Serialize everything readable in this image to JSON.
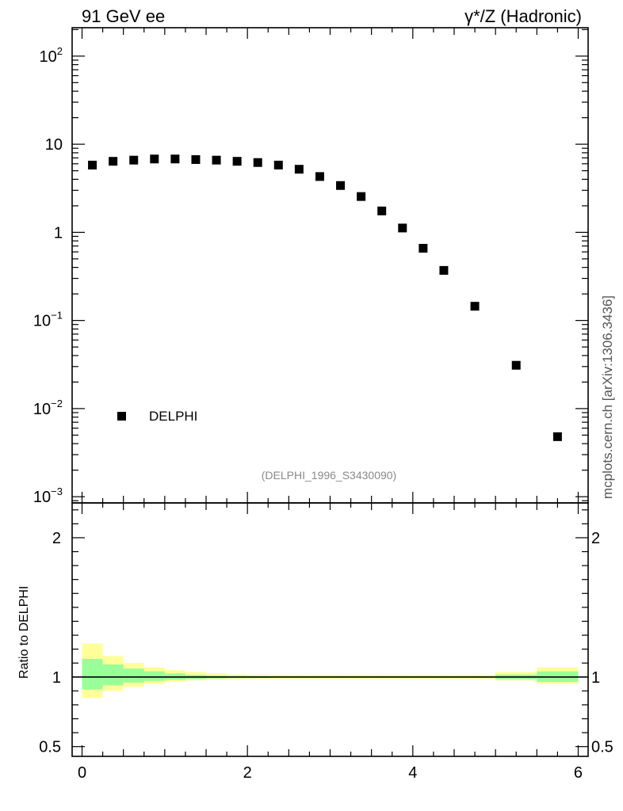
{
  "header": {
    "left": "91 GeV ee",
    "right": "γ*/Z (Hadronic)"
  },
  "side_label": "mcplots.cern.ch [arXiv:1306.3436]",
  "reference_label": "(DELPHI_1996_S3430090)",
  "chart_data": [
    {
      "type": "scatter",
      "yscale": "log",
      "xlim": [
        -0.12,
        6.12
      ],
      "ylim": [
        0.00085,
        210
      ],
      "y_ticks": [
        {
          "value": 100,
          "label": "10^2"
        },
        {
          "value": 10,
          "label": "10"
        },
        {
          "value": 1,
          "label": "1"
        },
        {
          "value": 0.1,
          "label": "10^-1"
        },
        {
          "value": 0.01,
          "label": "10^-2"
        },
        {
          "value": 0.001,
          "label": "10^-3"
        }
      ],
      "legend": {
        "position": "bottom-left",
        "entries": [
          "DELPHI"
        ]
      },
      "series": [
        {
          "name": "DELPHI",
          "color": "#000000",
          "marker": "square",
          "x": [
            0.125,
            0.375,
            0.625,
            0.875,
            1.125,
            1.375,
            1.625,
            1.875,
            2.125,
            2.375,
            2.625,
            2.875,
            3.125,
            3.375,
            3.625,
            3.875,
            4.125,
            4.375,
            4.75,
            5.25,
            5.75
          ],
          "y": [
            5.8,
            6.4,
            6.6,
            6.8,
            6.8,
            6.7,
            6.6,
            6.4,
            6.2,
            5.8,
            5.2,
            4.3,
            3.4,
            2.55,
            1.75,
            1.12,
            0.66,
            0.37,
            0.145,
            0.031,
            0.0048
          ]
        }
      ]
    },
    {
      "type": "area",
      "ylabel": "Ratio to DELPHI",
      "xlim": [
        -0.12,
        6.12
      ],
      "ylim": [
        0.43,
        2.25
      ],
      "x_ticks": [
        "0",
        "2",
        "4",
        "6"
      ],
      "y_ticks": [
        {
          "value": 2,
          "label": "2"
        },
        {
          "value": 1,
          "label": "1"
        },
        {
          "value": 0.5,
          "label": "0.5"
        }
      ],
      "bin_edges": [
        0,
        0.25,
        0.5,
        0.75,
        1.0,
        1.25,
        1.5,
        1.75,
        2.0,
        2.25,
        2.5,
        2.75,
        3.0,
        3.25,
        3.5,
        3.75,
        4.0,
        4.25,
        4.5,
        5.0,
        5.5,
        6.0
      ],
      "bands": [
        {
          "name": "total",
          "color": "#ffff99",
          "lower": [
            0.85,
            0.9,
            0.93,
            0.95,
            0.965,
            0.975,
            0.982,
            0.985,
            0.987,
            0.987,
            0.987,
            0.987,
            0.987,
            0.987,
            0.987,
            0.987,
            0.987,
            0.987,
            0.987,
            0.975,
            0.95
          ],
          "upper": [
            1.24,
            1.15,
            1.1,
            1.07,
            1.05,
            1.035,
            1.025,
            1.018,
            1.015,
            1.015,
            1.015,
            1.015,
            1.015,
            1.015,
            1.015,
            1.015,
            1.015,
            1.015,
            1.015,
            1.035,
            1.07
          ]
        },
        {
          "name": "statistical",
          "color": "#99ff99",
          "lower": [
            0.91,
            0.94,
            0.96,
            0.972,
            0.98,
            0.986,
            0.99,
            0.992,
            0.993,
            0.994,
            0.994,
            0.994,
            0.994,
            0.994,
            0.994,
            0.994,
            0.994,
            0.994,
            0.994,
            0.985,
            0.965
          ],
          "upper": [
            1.13,
            1.09,
            1.06,
            1.04,
            1.025,
            1.015,
            1.01,
            1.008,
            1.007,
            1.006,
            1.006,
            1.006,
            1.006,
            1.006,
            1.006,
            1.006,
            1.006,
            1.006,
            1.006,
            1.018,
            1.04
          ]
        }
      ],
      "reference_line": 1
    }
  ]
}
